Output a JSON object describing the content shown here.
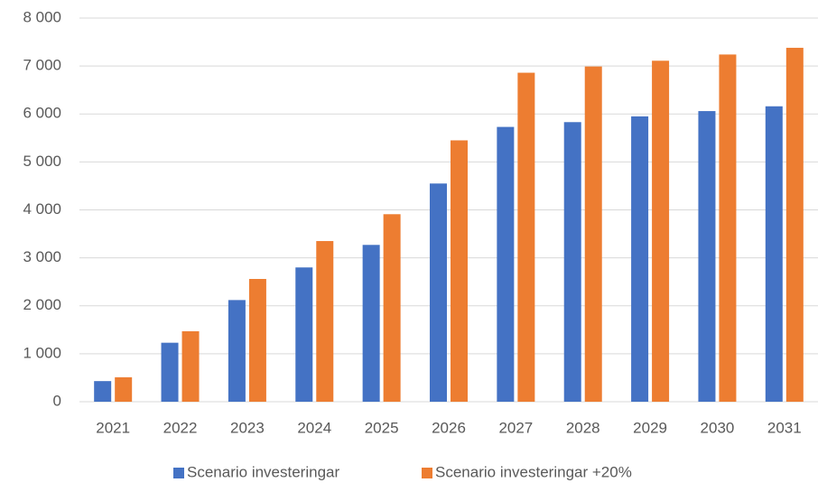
{
  "chart_data": {
    "type": "bar",
    "categories": [
      "2021",
      "2022",
      "2023",
      "2024",
      "2025",
      "2026",
      "2027",
      "2028",
      "2029",
      "2030",
      "2031"
    ],
    "series": [
      {
        "name": "Scenario investeringar",
        "color": "#4472c4",
        "values": [
          430,
          1230,
          2120,
          2800,
          3270,
          4550,
          5730,
          5830,
          5950,
          6060,
          6160
        ]
      },
      {
        "name": "Scenario investeringar +20%",
        "color": "#ed7d31",
        "values": [
          510,
          1470,
          2560,
          3350,
          3910,
          5450,
          6860,
          6990,
          7110,
          7240,
          7380
        ]
      }
    ],
    "ylim": [
      0,
      8000
    ],
    "yticks": [
      0,
      {
        "value": 1000,
        "label": "1 000"
      },
      {
        "value": 2000,
        "label": "2 000"
      },
      {
        "value": 3000,
        "label": "3 000"
      },
      {
        "value": 4000,
        "label": "4 000"
      },
      {
        "value": 5000,
        "label": "5 000"
      },
      {
        "value": 6000,
        "label": "6 000"
      },
      {
        "value": 7000,
        "label": "7 000"
      },
      {
        "value": 8000,
        "label": "8 000"
      }
    ],
    "grid": true,
    "legend": "bottom"
  }
}
